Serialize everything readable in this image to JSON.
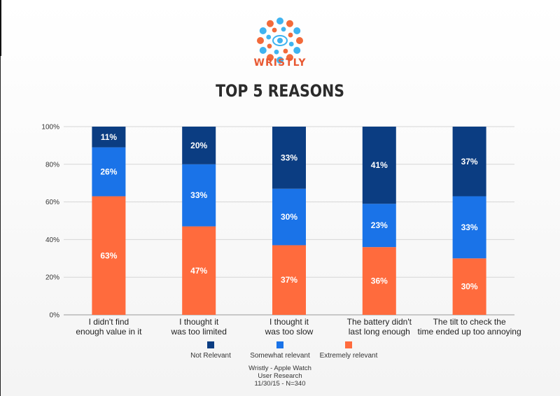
{
  "brand": "WRISTLY",
  "colors": {
    "not_relevant": "#0b3d82",
    "somewhat_relevant": "#1a73e8",
    "extremely_relevant": "#ff6b3d",
    "logo_orange": "#f26a3a",
    "logo_blue": "#3fb3f0"
  },
  "chart_data": {
    "type": "bar",
    "stacked": true,
    "title": "TOP 5 REASONS",
    "categories": [
      [
        "I didn't find",
        "enough value in it"
      ],
      [
        "I thought it",
        "was too limited"
      ],
      [
        "I thought it",
        "was too slow"
      ],
      [
        "The battery didn't",
        "last long enough"
      ],
      [
        "The tilt to check the",
        "time ended up too annoying"
      ]
    ],
    "series": [
      {
        "name": "Extremely relevant",
        "values": [
          63,
          47,
          37,
          36,
          30
        ]
      },
      {
        "name": "Somewhat relevant",
        "values": [
          26,
          33,
          30,
          23,
          33
        ]
      },
      {
        "name": "Not Relevant",
        "values": [
          11,
          20,
          33,
          41,
          37
        ]
      }
    ],
    "legend_order": [
      "Not Relevant",
      "Somewhat relevant",
      "Extremely relevant"
    ],
    "ylim": [
      0,
      100
    ],
    "yticks": [
      "0%",
      "20%",
      "40%",
      "60%",
      "80%",
      "100%"
    ],
    "value_suffix": "%",
    "legend_position": "bottom",
    "grid": true
  },
  "footer": [
    "Wristly - Apple Watch",
    "User Research",
    "11/30/15 - N=340"
  ]
}
